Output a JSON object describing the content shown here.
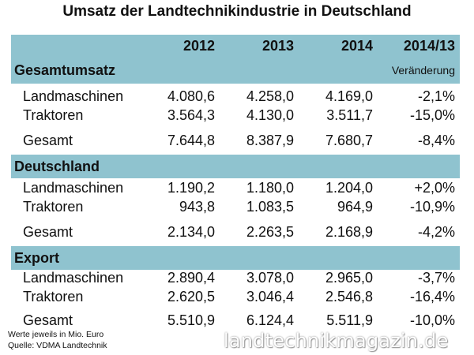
{
  "title": "Umsatz der Landtechnikindustrie in Deutschland",
  "header": {
    "years": [
      "2012",
      "2013",
      "2014",
      "2014/13"
    ],
    "change_label": "Veränderung"
  },
  "sections": [
    {
      "name": "Gesamtumsatz",
      "rows": [
        {
          "label": "Landmaschinen",
          "values": [
            "4.080,6",
            "4.258,0",
            "4.169,0",
            "-2,1%"
          ]
        },
        {
          "label": "Traktoren",
          "values": [
            "3.564,3",
            "4.130,0",
            "3.511,7",
            "-15,0%"
          ]
        },
        {
          "label": "Gesamt",
          "values": [
            "7.644,8",
            "8.387,9",
            "7.680,7",
            "-8,4%"
          ]
        }
      ]
    },
    {
      "name": "Deutschland",
      "rows": [
        {
          "label": "Landmaschinen",
          "values": [
            "1.190,2",
            "1.180,0",
            "1.204,0",
            "+2,0%"
          ]
        },
        {
          "label": "Traktoren",
          "values": [
            "943,8",
            "1.083,5",
            "964,9",
            "-10,9%"
          ]
        },
        {
          "label": "Gesamt",
          "values": [
            "2.134,0",
            "2.263,5",
            "2.168,9",
            "-4,2%"
          ]
        }
      ]
    },
    {
      "name": "Export",
      "rows": [
        {
          "label": "Landmaschinen",
          "values": [
            "2.890,4",
            "3.078,0",
            "2.965,0",
            "-3,7%"
          ]
        },
        {
          "label": "Traktoren",
          "values": [
            "2.620,5",
            "3.046,4",
            "2.546,8",
            "-16,4%"
          ]
        },
        {
          "label": "Gesamt",
          "values": [
            "5.510,9",
            "6.124,4",
            "5.511,9",
            "-10,0%"
          ]
        }
      ]
    }
  ],
  "footer": {
    "note": "Werte jeweils in Mio. Euro",
    "source": "Quelle: VDMA Landtechnik"
  },
  "watermark": "landtechnikmagazin.de",
  "colors": {
    "band": "#8fc3cf"
  }
}
